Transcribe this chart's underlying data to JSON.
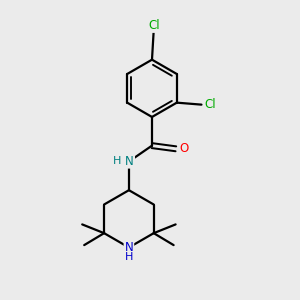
{
  "background_color": "#ebebeb",
  "bond_color": "#000000",
  "bond_width": 1.6,
  "atom_colors": {
    "Cl": "#00aa00",
    "O": "#ff0000",
    "N_amide": "#008080",
    "N_ring": "#0000cc",
    "H_amide": "#008080",
    "H_ring": "#0000cc"
  },
  "font_size_atoms": 8.5,
  "canvas_xlim": [
    -0.8,
    3.8
  ],
  "canvas_ylim": [
    -4.2,
    3.2
  ]
}
